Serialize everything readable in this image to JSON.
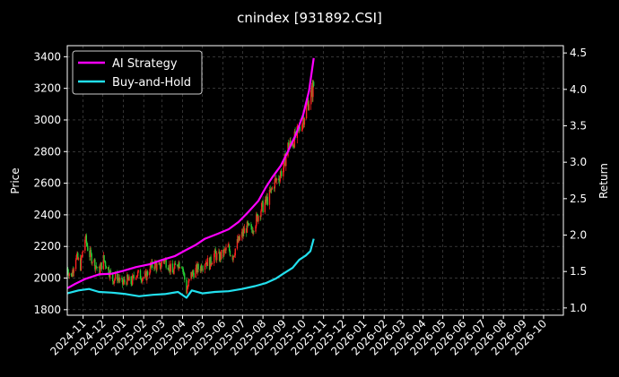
{
  "chart_data": {
    "type": "line",
    "title": "cnindex [931892.CSI]",
    "ylabel": "Price",
    "ylabel_right": "Return",
    "x_range": [
      "2024-10-08",
      "2026-10-31"
    ],
    "ylim": [
      1765,
      3470
    ],
    "ylim_right": [
      0.9,
      4.6
    ],
    "grid": true,
    "legend_position": "top-left",
    "x_ticks": [
      "2024-11",
      "2024-12",
      "2025-01",
      "2025-02",
      "2025-03",
      "2025-04",
      "2025-05",
      "2025-06",
      "2025-07",
      "2025-08",
      "2025-09",
      "2025-10",
      "2025-11",
      "2025-12",
      "2026-01",
      "2026-02",
      "2026-03",
      "2026-04",
      "2026-05",
      "2026-06",
      "2026-07",
      "2026-08",
      "2026-09",
      "2026-10"
    ],
    "y_ticks": [
      1800,
      2000,
      2200,
      2400,
      2600,
      2800,
      3000,
      3200,
      3400
    ],
    "y_ticks_right": [
      "1.0",
      "1.5",
      "2.0",
      "2.5",
      "3.0",
      "3.5",
      "4.0",
      "4.5"
    ],
    "price": {
      "x": [
        "2024-10-08",
        "2024-10-14",
        "2024-10-21",
        "2024-10-28",
        "2024-11-04",
        "2024-11-11",
        "2024-11-18",
        "2024-11-25",
        "2024-12-02",
        "2024-12-09",
        "2024-12-16",
        "2024-12-23",
        "2024-12-30",
        "2025-01-06",
        "2025-01-13",
        "2025-01-20",
        "2025-02-03",
        "2025-02-10",
        "2025-02-17",
        "2025-02-24",
        "2025-03-03",
        "2025-03-10",
        "2025-03-17",
        "2025-03-24",
        "2025-03-31",
        "2025-04-07",
        "2025-04-14",
        "2025-04-21",
        "2025-04-28",
        "2025-05-06",
        "2025-05-12",
        "2025-05-19",
        "2025-05-26",
        "2025-06-03",
        "2025-06-09",
        "2025-06-16",
        "2025-06-23",
        "2025-06-30",
        "2025-07-07",
        "2025-07-14",
        "2025-07-21",
        "2025-07-28",
        "2025-08-04",
        "2025-08-11",
        "2025-08-18",
        "2025-08-25",
        "2025-09-01",
        "2025-09-08",
        "2025-09-15",
        "2025-09-22",
        "2025-09-29",
        "2025-10-06",
        "2025-10-13",
        "2025-10-17"
      ],
      "values": [
        2060,
        2010,
        2140,
        2080,
        2250,
        2150,
        2100,
        2040,
        2120,
        2060,
        1990,
        2010,
        1960,
        1990,
        1970,
        2030,
        2000,
        2060,
        2090,
        2060,
        2120,
        2090,
        2030,
        2100,
        2090,
        1920,
        2020,
        2050,
        2070,
        2110,
        2090,
        2150,
        2130,
        2160,
        2190,
        2140,
        2220,
        2270,
        2320,
        2300,
        2360,
        2430,
        2470,
        2520,
        2600,
        2640,
        2700,
        2830,
        2860,
        2910,
        2980,
        3080,
        3160,
        3220
      ],
      "increase_color": "#ff2020",
      "decrease_color": "#22cc33"
    },
    "series": [
      {
        "name": "AI Strategy",
        "color": "#ff00ff",
        "x": [
          "2024-10-08",
          "2024-10-20",
          "2024-11-05",
          "2024-11-25",
          "2024-12-15",
          "2025-01-01",
          "2025-01-20",
          "2025-02-10",
          "2025-03-01",
          "2025-03-20",
          "2025-04-05",
          "2025-04-20",
          "2025-05-05",
          "2025-05-25",
          "2025-06-10",
          "2025-06-25",
          "2025-07-10",
          "2025-07-25",
          "2025-08-05",
          "2025-08-15",
          "2025-08-28",
          "2025-09-08",
          "2025-09-20",
          "2025-10-01",
          "2025-10-10",
          "2025-10-17"
        ],
        "values": [
          1.27,
          1.33,
          1.4,
          1.46,
          1.47,
          1.51,
          1.56,
          1.6,
          1.66,
          1.71,
          1.79,
          1.86,
          1.95,
          2.02,
          2.08,
          2.18,
          2.32,
          2.47,
          2.65,
          2.79,
          2.95,
          3.15,
          3.38,
          3.65,
          3.98,
          4.43
        ]
      },
      {
        "name": "Buy-and-Hold",
        "color": "#22e0ee",
        "x": [
          "2024-10-08",
          "2024-10-25",
          "2024-11-10",
          "2024-11-25",
          "2024-12-15",
          "2025-01-05",
          "2025-01-25",
          "2025-02-15",
          "2025-03-05",
          "2025-03-25",
          "2025-04-07",
          "2025-04-15",
          "2025-05-01",
          "2025-05-20",
          "2025-06-10",
          "2025-06-30",
          "2025-07-20",
          "2025-08-05",
          "2025-08-20",
          "2025-09-01",
          "2025-09-15",
          "2025-09-25",
          "2025-10-05",
          "2025-10-12",
          "2025-10-17"
        ],
        "values": [
          1.2,
          1.24,
          1.26,
          1.22,
          1.21,
          1.19,
          1.16,
          1.18,
          1.19,
          1.22,
          1.14,
          1.24,
          1.2,
          1.22,
          1.23,
          1.26,
          1.3,
          1.34,
          1.4,
          1.47,
          1.55,
          1.66,
          1.72,
          1.78,
          1.95
        ]
      }
    ]
  }
}
